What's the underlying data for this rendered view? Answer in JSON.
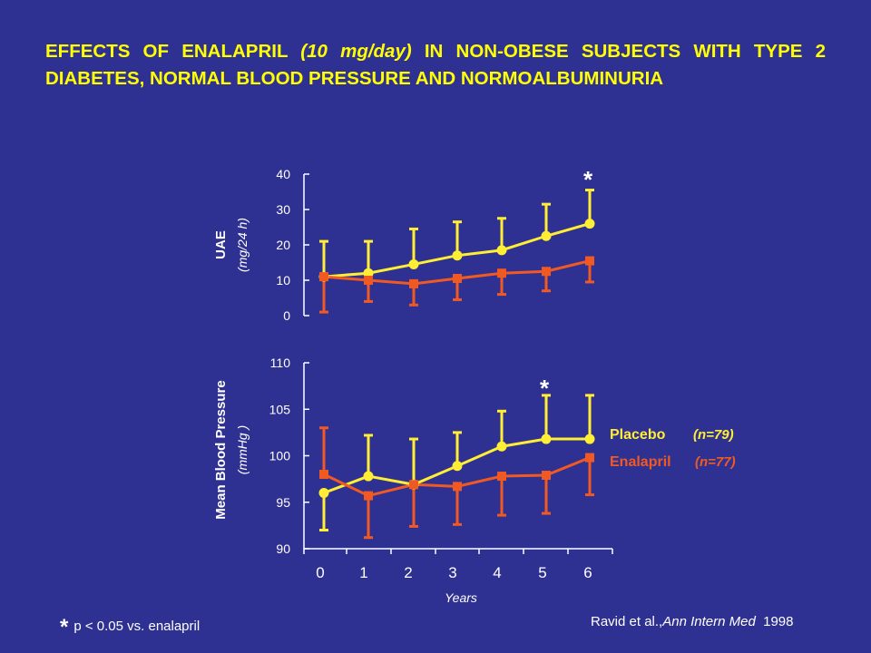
{
  "title": {
    "part1": "EFFECTS OF ENALAPRIL ",
    "part2": "(10 mg/day)",
    "part3": " IN NON-OBESE SUBJECTS WITH TYPE 2 DIABETES, NORMAL BLOOD PRESSURE AND NORMOALBUMINURIA"
  },
  "footnote": {
    "star": "*",
    "text": "p < 0.05 vs. enalapril"
  },
  "citation": {
    "author": "Ravid et al.,",
    "journal": "Ann Intern Med",
    "year": "1998"
  },
  "colors": {
    "background": "#2f3192",
    "placebo": "#ffee33",
    "enalapril": "#f05a22",
    "axis": "#ffffff",
    "title": "#ffff00"
  },
  "chart_data": [
    {
      "type": "line",
      "ylabel": "UAE",
      "yunit": "(mg/24 h)",
      "ylim": [
        0,
        40
      ],
      "yticks": [
        0,
        10,
        20,
        30,
        40
      ],
      "x": [
        0,
        1,
        2,
        3,
        4,
        5,
        6
      ],
      "series": [
        {
          "name": "Placebo",
          "marker": "circle",
          "values": [
            11,
            12,
            14.5,
            17,
            18.5,
            22.5,
            26
          ],
          "error_upper": [
            21,
            21,
            24.5,
            26.5,
            27.5,
            31.5,
            35.5
          ]
        },
        {
          "name": "Enalapril",
          "marker": "square",
          "values": [
            11,
            10,
            9,
            10.5,
            12,
            12.5,
            15.5
          ],
          "error_lower": [
            1,
            4,
            3,
            4.5,
            6,
            7,
            9.5
          ]
        }
      ],
      "annotations": [
        {
          "text": "*",
          "x": 6
        }
      ]
    },
    {
      "type": "line",
      "ylabel": "Mean Blood Pressure",
      "yunit": "(mmHg )",
      "ylim": [
        90,
        110
      ],
      "yticks": [
        90,
        95,
        100,
        105,
        110
      ],
      "x": [
        0,
        1,
        2,
        3,
        4,
        5,
        6
      ],
      "xticks": [
        "0",
        "1",
        "2",
        "3",
        "4",
        "5",
        "6"
      ],
      "xlabel": "Years",
      "series": [
        {
          "name": "Placebo",
          "n": "(n=79)",
          "marker": "circle",
          "values": [
            96,
            97.8,
            96.9,
            98.9,
            101,
            101.8,
            101.8
          ],
          "error_upper": [
            92,
            102.2,
            101.8,
            102.5,
            104.8,
            106.5,
            106.5
          ],
          "error_note": "first point bar extends downward"
        },
        {
          "name": "Enalapril",
          "n": "(n=77)",
          "marker": "square",
          "values": [
            98,
            95.7,
            96.9,
            96.7,
            97.8,
            97.9,
            99.8
          ],
          "error": [
            103,
            91.2,
            92.4,
            92.6,
            93.6,
            93.8,
            95.8
          ]
        }
      ],
      "annotations": [
        {
          "text": "*",
          "x": 5
        }
      ]
    }
  ]
}
